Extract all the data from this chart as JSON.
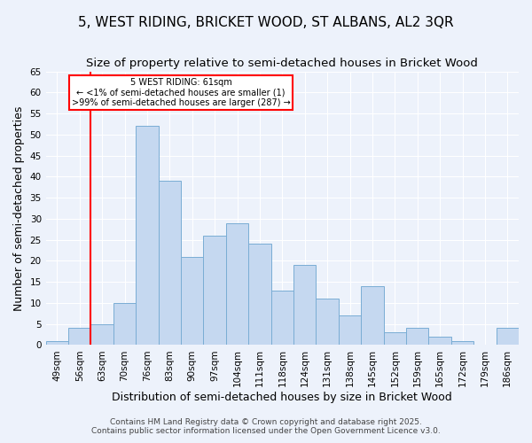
{
  "title": "5, WEST RIDING, BRICKET WOOD, ST ALBANS, AL2 3QR",
  "subtitle": "Size of property relative to semi-detached houses in Bricket Wood",
  "xlabel": "Distribution of semi-detached houses by size in Bricket Wood",
  "ylabel": "Number of semi-detached properties",
  "footer_line1": "Contains HM Land Registry data © Crown copyright and database right 2025.",
  "footer_line2": "Contains public sector information licensed under the Open Government Licence v3.0.",
  "categories": [
    "49sqm",
    "56sqm",
    "63sqm",
    "70sqm",
    "76sqm",
    "83sqm",
    "90sqm",
    "97sqm",
    "104sqm",
    "111sqm",
    "118sqm",
    "124sqm",
    "131sqm",
    "138sqm",
    "145sqm",
    "152sqm",
    "159sqm",
    "165sqm",
    "172sqm",
    "179sqm",
    "186sqm"
  ],
  "values": [
    1,
    4,
    5,
    10,
    52,
    39,
    21,
    26,
    29,
    24,
    13,
    19,
    11,
    7,
    14,
    3,
    4,
    2,
    1,
    0,
    4
  ],
  "bar_color": "#c5d8f0",
  "bar_edge_color": "#7aadd4",
  "vline_x_index": 2,
  "vline_color": "red",
  "annotation_text": "5 WEST RIDING: 61sqm\n← <1% of semi-detached houses are smaller (1)\n>99% of semi-detached houses are larger (287) →",
  "annotation_box_color": "white",
  "annotation_box_edge_color": "red",
  "ylim": [
    0,
    65
  ],
  "yticks": [
    0,
    5,
    10,
    15,
    20,
    25,
    30,
    35,
    40,
    45,
    50,
    55,
    60,
    65
  ],
  "bg_color": "#edf2fb",
  "grid_color": "white",
  "title_fontsize": 11,
  "subtitle_fontsize": 9.5,
  "axis_label_fontsize": 9,
  "tick_fontsize": 7.5,
  "footer_fontsize": 6.5
}
